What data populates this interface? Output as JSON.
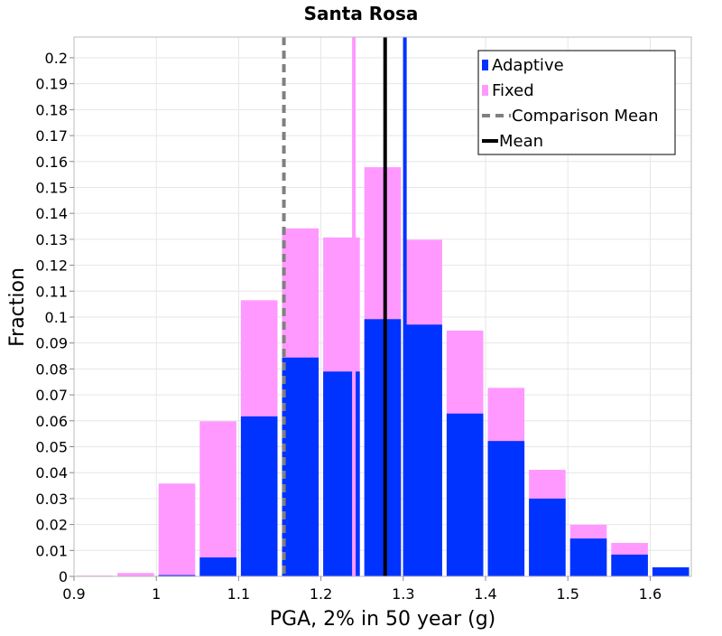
{
  "chart_data": {
    "type": "bar",
    "title": "Santa Rosa",
    "xlabel": "PGA, 2% in 50 year (g)",
    "ylabel": "Fraction",
    "xlim": [
      0.9,
      1.65
    ],
    "ylim": [
      0,
      0.208
    ],
    "bin_width": 0.05,
    "grid": true,
    "legend_position": "top-right",
    "x_ticks": [
      0.9,
      1.0,
      1.1,
      1.2,
      1.3,
      1.4,
      1.5,
      1.6
    ],
    "x_tick_labels": [
      "0.9",
      "1",
      "1.1",
      "1.2",
      "1.3",
      "1.4",
      "1.5",
      "1.6"
    ],
    "y_ticks": [
      0,
      0.01,
      0.02,
      0.03,
      0.04,
      0.05,
      0.06,
      0.07,
      0.08,
      0.09,
      0.1,
      0.11,
      0.12,
      0.13,
      0.14,
      0.15,
      0.16,
      0.17,
      0.18,
      0.19,
      0.2
    ],
    "y_tick_labels": [
      "0",
      "0.01",
      "0.02",
      "0.03",
      "0.04",
      "0.05",
      "0.06",
      "0.07",
      "0.08",
      "0.09",
      "0.1",
      "0.11",
      "0.12",
      "0.13",
      "0.14",
      "0.15",
      "0.16",
      "0.17",
      "0.18",
      "0.19",
      "0.2"
    ],
    "bin_starts": [
      0.9,
      0.95,
      1.0,
      1.05,
      1.1,
      1.15,
      1.2,
      1.25,
      1.3,
      1.35,
      1.4,
      1.45,
      1.5,
      1.55,
      1.6
    ],
    "series": [
      {
        "name": "Fixed",
        "color": "#ff99ff",
        "values": [
          0.0003,
          0.0013,
          0.0358,
          0.0598,
          0.1065,
          0.1342,
          0.1307,
          0.1578,
          0.1298,
          0.0948,
          0.0727,
          0.0411,
          0.0199,
          0.0129,
          0.0
        ]
      },
      {
        "name": "Adaptive",
        "color": "#0033ff",
        "values": [
          0.0,
          0.0,
          0.0005,
          0.0073,
          0.0617,
          0.0844,
          0.079,
          0.0992,
          0.0971,
          0.0628,
          0.0522,
          0.03,
          0.0146,
          0.0084,
          0.0035
        ]
      }
    ],
    "lines": [
      {
        "name": "Comparison Mean",
        "x": 1.155,
        "color": "#808080",
        "style": "dashed"
      },
      {
        "name": "Mean",
        "x": 1.278,
        "color": "#000000",
        "style": "solid"
      },
      {
        "name": "Fixed mean",
        "x": 1.24,
        "color": "#ff99ff",
        "style": "solid"
      },
      {
        "name": "Adaptive mean",
        "x": 1.302,
        "color": "#0033ff",
        "style": "solid"
      }
    ],
    "legend": [
      {
        "label": "Adaptive",
        "kind": "bar",
        "color": "#0033ff"
      },
      {
        "label": "Fixed",
        "kind": "bar",
        "color": "#ff99ff"
      },
      {
        "label": "Comparison Mean",
        "kind": "dashed",
        "color": "#808080"
      },
      {
        "label": "Mean",
        "kind": "solid",
        "color": "#000000"
      }
    ]
  }
}
